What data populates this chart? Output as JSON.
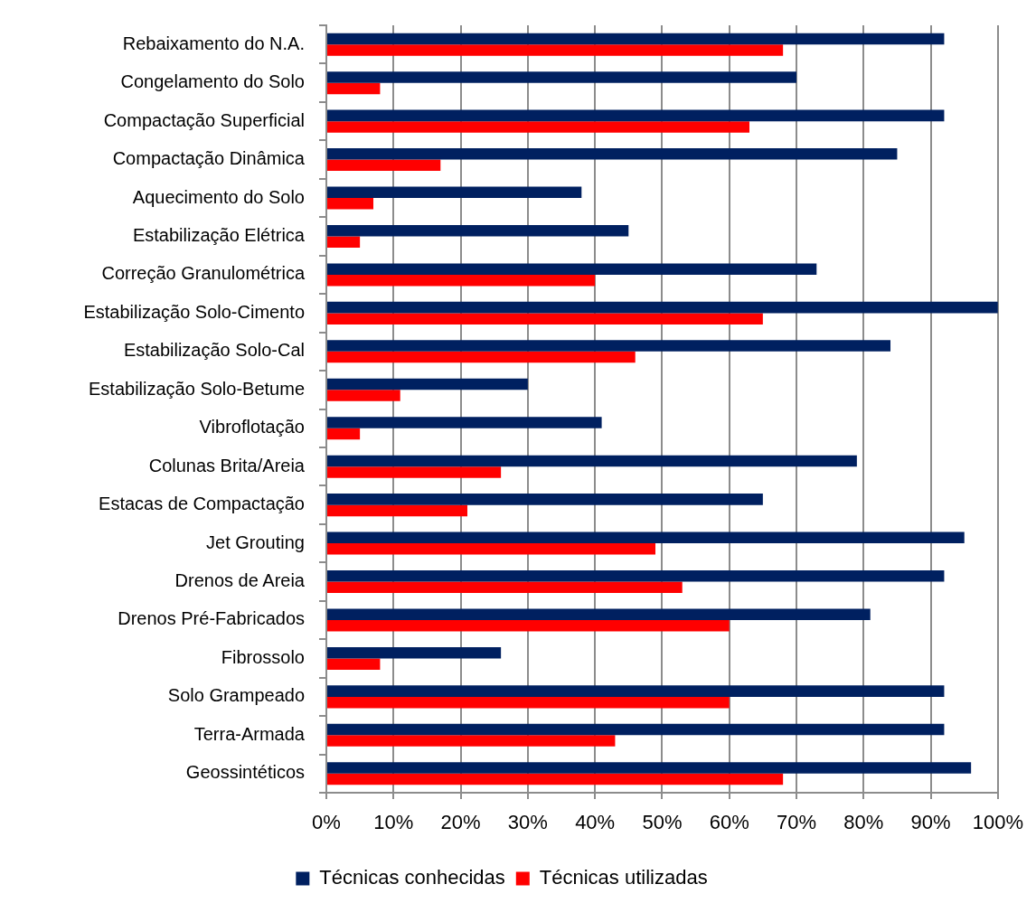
{
  "chart_data": {
    "type": "bar",
    "orientation": "horizontal",
    "categories": [
      "Rebaixamento do N.A.",
      "Congelamento do Solo",
      "Compactação Superficial",
      "Compactação Dinâmica",
      "Aquecimento do Solo",
      "Estabilização Elétrica",
      "Correção Granulométrica",
      "Estabilização Solo-Cimento",
      "Estabilização Solo-Cal",
      "Estabilização Solo-Betume",
      "Vibroflotação",
      "Colunas Brita/Areia",
      "Estacas de Compactação",
      "Jet Grouting",
      "Drenos de Areia",
      "Drenos Pré-Fabricados",
      "Fibrossolo",
      "Solo Grampeado",
      "Terra-Armada",
      "Geossintéticos"
    ],
    "series": [
      {
        "name": "Técnicas conhecidas",
        "color": "#002060",
        "values": [
          92,
          70,
          92,
          85,
          38,
          45,
          73,
          100,
          84,
          30,
          41,
          79,
          65,
          95,
          92,
          81,
          26,
          92,
          92,
          96
        ]
      },
      {
        "name": "Técnicas utilizadas",
        "color": "#ff0000",
        "values": [
          68,
          8,
          63,
          17,
          7,
          5,
          40,
          65,
          46,
          11,
          5,
          26,
          21,
          49,
          53,
          60,
          8,
          60,
          43,
          68
        ]
      }
    ],
    "xlim": [
      0,
      100
    ],
    "xticks": [
      {
        "value": 0,
        "label": "0%"
      },
      {
        "value": 10,
        "label": "10%"
      },
      {
        "value": 20,
        "label": "20%"
      },
      {
        "value": 30,
        "label": "30%"
      },
      {
        "value": 40,
        "label": "40%"
      },
      {
        "value": 50,
        "label": "50%"
      },
      {
        "value": 60,
        "label": "60%"
      },
      {
        "value": 70,
        "label": "70%"
      },
      {
        "value": 80,
        "label": "80%"
      },
      {
        "value": 90,
        "label": "90%"
      },
      {
        "value": 100,
        "label": "100%"
      }
    ],
    "grid": "x",
    "legend": "bottom"
  }
}
